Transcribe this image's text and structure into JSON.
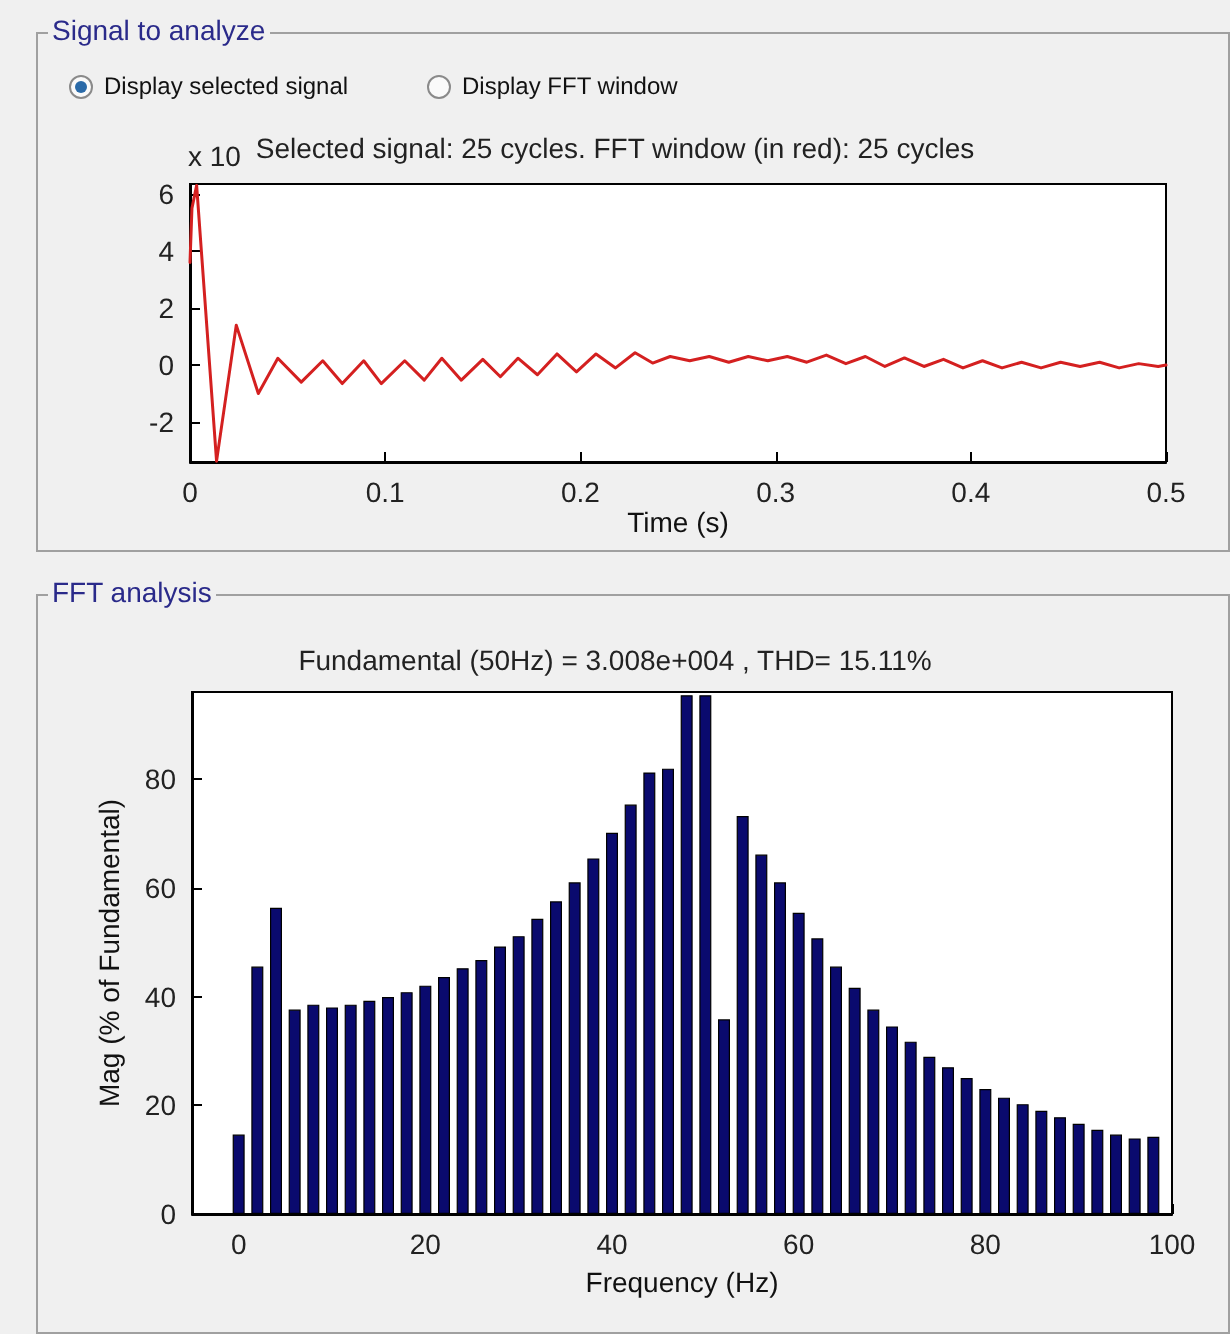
{
  "chart_data": [
    {
      "type": "line",
      "title": "Selected signal: 25 cycles. FFT window (in red): 25 cycles",
      "xlabel": "Time (s)",
      "annotations": [
        "Signal to analyze",
        "Display selected signal",
        "Display FFT window",
        "x 10"
      ],
      "x": [
        0,
        0.001,
        0.0034,
        0.0136,
        0.0237,
        0.035,
        0.045,
        0.057,
        0.068,
        0.078,
        0.089,
        0.098,
        0.11,
        0.12,
        0.129,
        0.139,
        0.15,
        0.159,
        0.168,
        0.178,
        0.188,
        0.198,
        0.208,
        0.218,
        0.228,
        0.237,
        0.246,
        0.256,
        0.266,
        0.276,
        0.286,
        0.296,
        0.306,
        0.316,
        0.326,
        0.336,
        0.346,
        0.356,
        0.366,
        0.376,
        0.386,
        0.396,
        0.406,
        0.416,
        0.426,
        0.436,
        0.446,
        0.456,
        0.466,
        0.476,
        0.486,
        0.496,
        0.5
      ],
      "series": [
        {
          "color": "#d42020",
          "values": [
            3.6,
            5.5,
            6.3,
            -3.37,
            1.4,
            -1.0,
            0.24,
            -0.6,
            0.15,
            -0.65,
            0.15,
            -0.65,
            0.15,
            -0.53,
            0.24,
            -0.53,
            0.2,
            -0.41,
            0.24,
            -0.34,
            0.39,
            -0.24,
            0.39,
            -0.1,
            0.43,
            0.07,
            0.3,
            0.15,
            0.3,
            0.1,
            0.3,
            0.15,
            0.3,
            0.1,
            0.35,
            0.05,
            0.3,
            -0.05,
            0.25,
            -0.05,
            0.2,
            -0.1,
            0.15,
            -0.1,
            0.1,
            -0.1,
            0.1,
            -0.05,
            0.1,
            -0.1,
            0.05,
            -0.05,
            0
          ]
        }
      ],
      "xlim": [
        0,
        0.5
      ],
      "xticks": [
        0,
        0.1,
        0.2,
        0.3,
        0.4,
        0.5
      ],
      "ylim": [
        -3.4,
        6.35
      ],
      "yticks": [
        -2,
        0,
        2,
        4,
        6
      ],
      "grid": false,
      "marker": "none",
      "line_style": "solid"
    },
    {
      "type": "bar",
      "title": "Fundamental (50Hz) = 3.008e+004 , THD= 15.11%",
      "xlabel": "Frequency (Hz)",
      "ylabel": "Mag (% of Fundamental)",
      "annotations": [
        "FFT analysis"
      ],
      "x": [
        0,
        2,
        4,
        6,
        8,
        10,
        12,
        14,
        16,
        18,
        20,
        22,
        24,
        26,
        28,
        30,
        32,
        34,
        36,
        38,
        40,
        42,
        44,
        46,
        48,
        50,
        52,
        54,
        56,
        58,
        60,
        62,
        64,
        66,
        68,
        70,
        72,
        74,
        76,
        78,
        80,
        82,
        84,
        86,
        88,
        90,
        92,
        94,
        96,
        98
      ],
      "series": [
        {
          "color": "#0a0a6e",
          "values": [
            14.6,
            45.5,
            56.3,
            37.6,
            38.5,
            38.0,
            38.5,
            39.2,
            39.9,
            40.8,
            42.0,
            43.6,
            45.2,
            46.7,
            49.2,
            51.1,
            54.3,
            57.5,
            61.0,
            65.4,
            70.1,
            75.3,
            81.2,
            81.9,
            95.4,
            95.4,
            35.8,
            73.2,
            66.1,
            61.0,
            55.4,
            50.7,
            45.5,
            41.6,
            37.6,
            34.5,
            31.7,
            28.9,
            27.0,
            25.0,
            23.0,
            21.4,
            20.2,
            19.0,
            17.8,
            16.6,
            15.5,
            14.6,
            13.9,
            14.2
          ]
        }
      ],
      "xlim": [
        -5,
        100
      ],
      "xticks": [
        0,
        20,
        40,
        60,
        80,
        100
      ],
      "ylim": [
        0,
        96
      ],
      "yticks": [
        0,
        20,
        40,
        60,
        80
      ],
      "grid": false
    }
  ]
}
